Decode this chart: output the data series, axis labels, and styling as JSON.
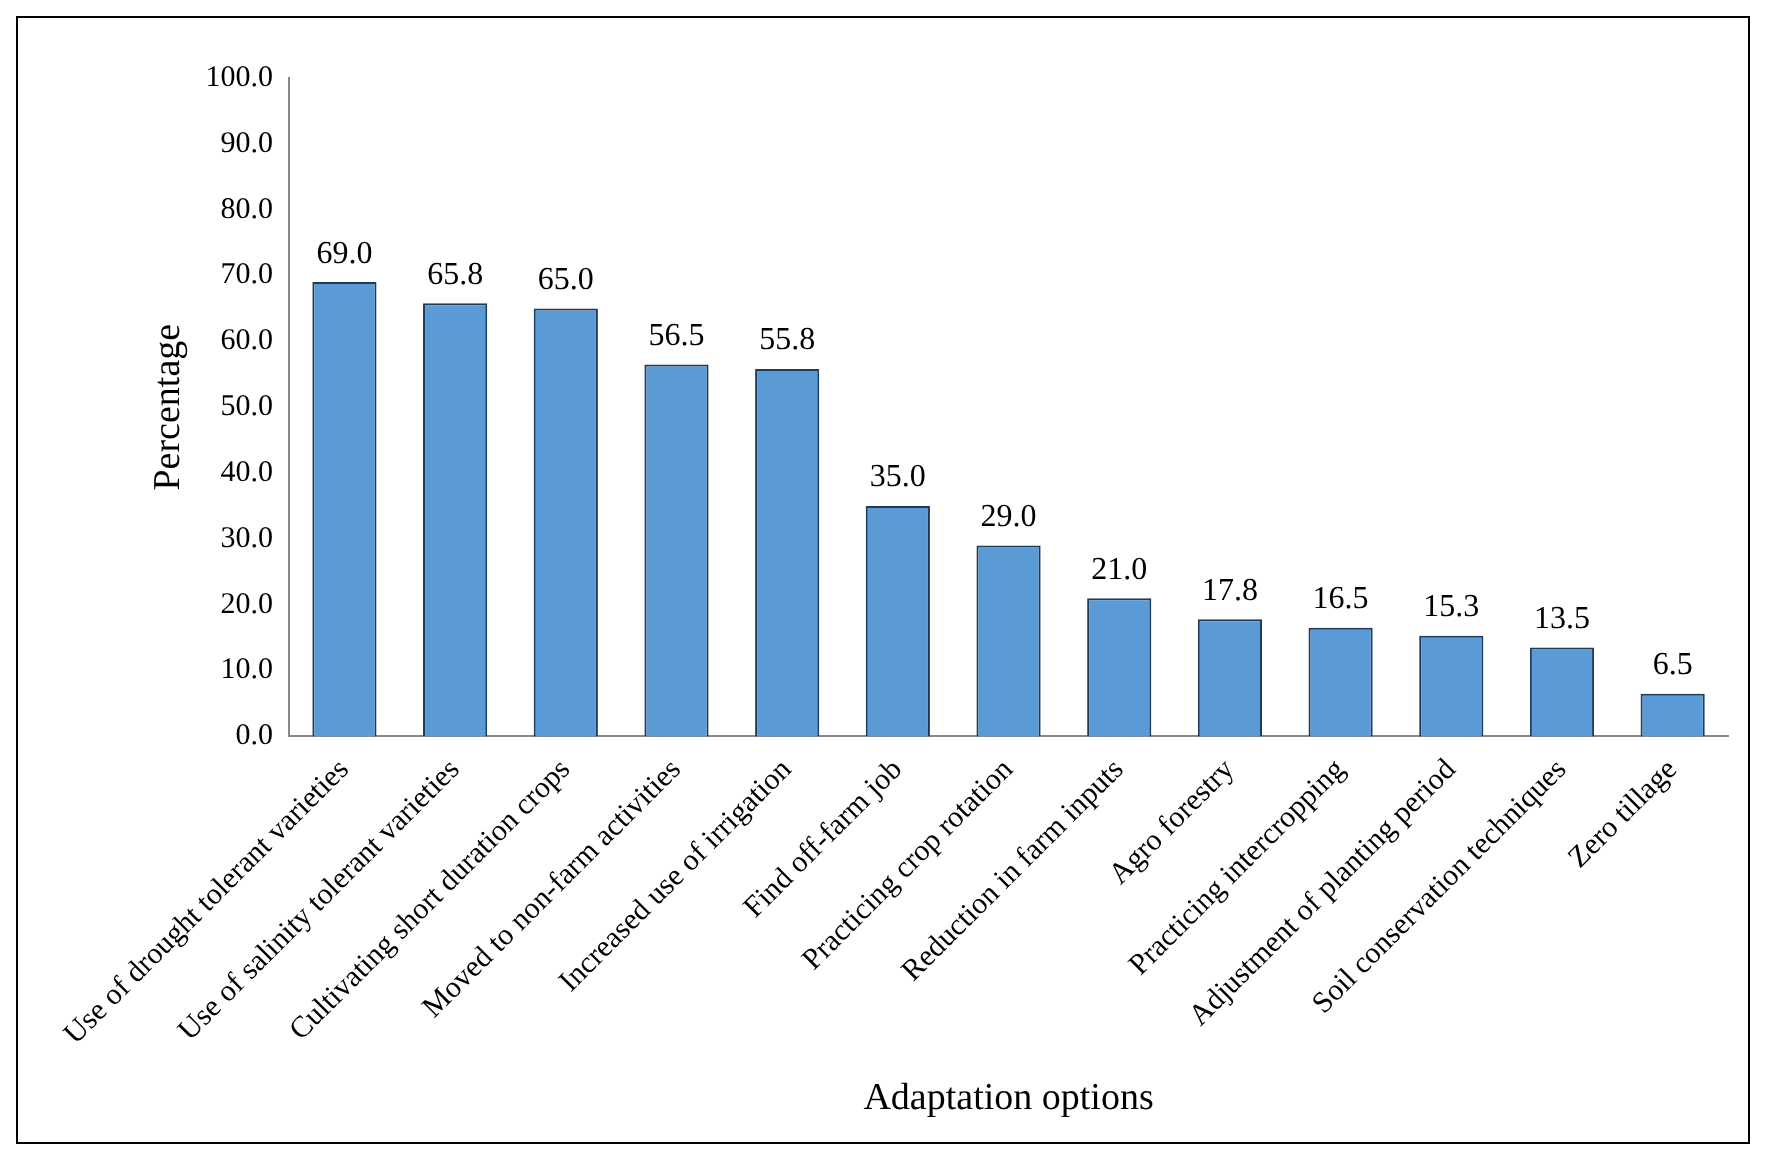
{
  "chart_data": {
    "type": "bar",
    "xlabel": "Adaptation options",
    "ylabel": "Percentage",
    "categories": [
      "Use of drought tolerant varieties",
      "Use of salinity tolerant varieties",
      "Cultivating short duration crops",
      "Moved to non-farm activities",
      "Increased use of irrigation",
      "Find off-farm job",
      "Practicing crop rotation",
      "Reduction in farm inputs",
      "Agro forestry",
      "Practicing intercropping",
      "Adjustment of planting period",
      "Soil conservation techniques",
      "Zero tillage"
    ],
    "values": [
      69.0,
      65.8,
      65.0,
      56.5,
      55.8,
      35.0,
      29.0,
      21.0,
      17.8,
      16.5,
      15.3,
      13.5,
      6.5
    ],
    "value_labels": [
      "69.0",
      "65.8",
      "65.0",
      "56.5",
      "55.8",
      "35.0",
      "29.0",
      "21.0",
      "17.8",
      "16.5",
      "15.3",
      "13.5",
      "6.5"
    ],
    "color": "#5b9bd5",
    "ylim": [
      0,
      100
    ],
    "yticks": [
      {
        "value": 0,
        "label": "0.0"
      },
      {
        "value": 10,
        "label": "10.0"
      },
      {
        "value": 20,
        "label": "20.0"
      },
      {
        "value": 30,
        "label": "30.0"
      },
      {
        "value": 40,
        "label": "40.0"
      },
      {
        "value": 50,
        "label": "50.0"
      },
      {
        "value": 60,
        "label": "60.0"
      },
      {
        "value": 70,
        "label": "70.0"
      },
      {
        "value": 80,
        "label": "80.0"
      },
      {
        "value": 90,
        "label": "90.0"
      },
      {
        "value": 100,
        "label": "100.0"
      }
    ],
    "grid": false,
    "legend": false
  }
}
